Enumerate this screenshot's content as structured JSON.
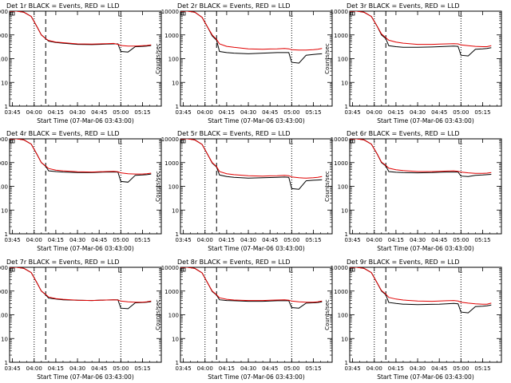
{
  "colors": {
    "events": "#000000",
    "lld": "#e00000",
    "axes": "#000000",
    "background": "#ffffff"
  },
  "shared": {
    "ylabel": "Counts/sec",
    "xlabel": "Start Time (07-Mar-06 03:43:00)",
    "y_scale": "log",
    "ylim": [
      1,
      10000
    ],
    "y_ticks": [
      "1",
      "10",
      "100",
      "1000",
      "10000"
    ],
    "x_ticks": [
      "03:45",
      "04:00",
      "04:15",
      "04:30",
      "04:45",
      "05:00",
      "05:15"
    ],
    "x_range_minutes": [
      223,
      328
    ],
    "dotted_line_times": [
      "04:00",
      "05:00"
    ],
    "dashed_line_time": "04:08",
    "grid": false,
    "legend": "none"
  },
  "chart_data": [
    {
      "type": "line",
      "title": "Det 1r BLACK = Events, RED = LLD",
      "x": [
        "03:43",
        "03:48",
        "03:53",
        "03:58",
        "04:02",
        "04:05",
        "04:08",
        "04:10",
        "04:15",
        "04:20",
        "04:30",
        "04:40",
        "04:45",
        "04:50",
        "04:55",
        "04:58",
        "05:00",
        "05:05",
        "05:10",
        "05:15",
        "05:18",
        "05:21"
      ],
      "series": [
        {
          "name": "Events",
          "values": [
            10000,
            10000,
            9000,
            6000,
            2200,
            1000,
            700,
            550,
            480,
            450,
            400,
            390,
            400,
            410,
            420,
            420,
            200,
            190,
            320,
            330,
            340,
            360
          ]
        },
        {
          "name": "LLD",
          "values": [
            10000,
            10000,
            9000,
            6000,
            2200,
            1000,
            700,
            580,
            500,
            470,
            420,
            410,
            420,
            430,
            440,
            400,
            360,
            340,
            340,
            350,
            360,
            380
          ]
        }
      ]
    },
    {
      "type": "line",
      "title": "Det 2r BLACK = Events, RED = LLD",
      "x": [
        "03:43",
        "03:48",
        "03:53",
        "03:58",
        "04:02",
        "04:05",
        "04:08",
        "04:10",
        "04:15",
        "04:20",
        "04:30",
        "04:40",
        "04:45",
        "04:50",
        "04:55",
        "04:58",
        "05:00",
        "05:05",
        "05:10",
        "05:15",
        "05:18",
        "05:21"
      ],
      "series": [
        {
          "name": "Events",
          "values": [
            10000,
            10000,
            9000,
            5500,
            2000,
            900,
            600,
            200,
            180,
            170,
            160,
            170,
            175,
            180,
            180,
            180,
            70,
            65,
            140,
            150,
            155,
            160
          ]
        },
        {
          "name": "LLD",
          "values": [
            10000,
            10000,
            9000,
            5500,
            2000,
            1000,
            650,
            420,
            330,
            300,
            260,
            250,
            255,
            260,
            270,
            260,
            240,
            230,
            230,
            240,
            250,
            270
          ]
        }
      ]
    },
    {
      "type": "line",
      "title": "Det 3r BLACK = Events, RED = LLD",
      "x": [
        "03:43",
        "03:48",
        "03:53",
        "03:58",
        "04:02",
        "04:05",
        "04:08",
        "04:10",
        "04:15",
        "04:20",
        "04:30",
        "04:40",
        "04:45",
        "04:50",
        "04:55",
        "04:58",
        "05:00",
        "05:05",
        "05:10",
        "05:15",
        "05:18",
        "05:21"
      ],
      "series": [
        {
          "name": "Events",
          "values": [
            10000,
            10000,
            9000,
            6000,
            2300,
            1000,
            700,
            350,
            320,
            300,
            300,
            310,
            320,
            330,
            340,
            330,
            140,
            130,
            250,
            260,
            270,
            290
          ]
        },
        {
          "name": "LLD",
          "values": [
            10000,
            10000,
            9000,
            6000,
            2300,
            1100,
            760,
            600,
            500,
            450,
            400,
            400,
            410,
            420,
            430,
            420,
            380,
            350,
            330,
            320,
            320,
            350
          ]
        }
      ]
    },
    {
      "type": "line",
      "title": "Det 4r BLACK = Events, RED = LLD",
      "x": [
        "03:43",
        "03:48",
        "03:53",
        "03:58",
        "04:02",
        "04:05",
        "04:08",
        "04:10",
        "04:15",
        "04:20",
        "04:30",
        "04:40",
        "04:45",
        "04:50",
        "04:55",
        "04:58",
        "05:00",
        "05:05",
        "05:10",
        "05:15",
        "05:18",
        "05:21"
      ],
      "series": [
        {
          "name": "Events",
          "values": [
            10000,
            10000,
            9000,
            6000,
            2200,
            1000,
            700,
            450,
            420,
            400,
            380,
            380,
            390,
            400,
            400,
            400,
            160,
            150,
            290,
            300,
            310,
            330
          ]
        },
        {
          "name": "LLD",
          "values": [
            10000,
            10000,
            9000,
            6000,
            2200,
            1000,
            720,
            560,
            480,
            450,
            410,
            400,
            410,
            420,
            430,
            410,
            370,
            340,
            330,
            330,
            340,
            360
          ]
        }
      ]
    },
    {
      "type": "line",
      "title": "Det 5r BLACK = Events, RED = LLD",
      "x": [
        "03:43",
        "03:48",
        "03:53",
        "03:58",
        "04:02",
        "04:05",
        "04:08",
        "04:10",
        "04:15",
        "04:20",
        "04:30",
        "04:40",
        "04:45",
        "04:50",
        "04:55",
        "04:58",
        "05:00",
        "05:05",
        "05:10",
        "05:15",
        "05:18",
        "05:21"
      ],
      "series": [
        {
          "name": "Events",
          "values": [
            10000,
            10000,
            9000,
            5800,
            2100,
            950,
            650,
            300,
            260,
            240,
            220,
            230,
            235,
            240,
            245,
            240,
            80,
            75,
            170,
            180,
            185,
            190
          ]
        },
        {
          "name": "LLD",
          "values": [
            10000,
            10000,
            9000,
            5800,
            2100,
            1000,
            680,
            420,
            340,
            310,
            280,
            270,
            275,
            280,
            290,
            280,
            250,
            230,
            220,
            230,
            240,
            260
          ]
        }
      ]
    },
    {
      "type": "line",
      "title": "Det 6r BLACK = Events, RED = LLD",
      "x": [
        "03:43",
        "03:48",
        "03:53",
        "03:58",
        "04:02",
        "04:05",
        "04:08",
        "04:10",
        "04:15",
        "04:20",
        "04:30",
        "04:40",
        "04:45",
        "04:50",
        "04:55",
        "04:58",
        "05:00",
        "05:05",
        "05:10",
        "05:15",
        "05:18",
        "05:21"
      ],
      "series": [
        {
          "name": "Events",
          "values": [
            10000,
            10000,
            9000,
            6000,
            2300,
            1000,
            720,
            420,
            390,
            380,
            370,
            380,
            390,
            400,
            400,
            400,
            270,
            260,
            290,
            300,
            310,
            320
          ]
        },
        {
          "name": "LLD",
          "values": [
            10000,
            10000,
            9000,
            6000,
            2300,
            1050,
            760,
            580,
            500,
            460,
            420,
            420,
            430,
            440,
            450,
            430,
            400,
            370,
            350,
            350,
            360,
            380
          ]
        }
      ]
    },
    {
      "type": "line",
      "title": "Det 7r BLACK = Events, RED = LLD",
      "x": [
        "03:43",
        "03:48",
        "03:53",
        "03:58",
        "04:02",
        "04:05",
        "04:08",
        "04:10",
        "04:15",
        "04:20",
        "04:30",
        "04:40",
        "04:45",
        "04:50",
        "04:55",
        "04:58",
        "05:00",
        "05:05",
        "05:10",
        "05:15",
        "05:18",
        "05:21"
      ],
      "series": [
        {
          "name": "Events",
          "values": [
            10000,
            10000,
            9000,
            6000,
            2200,
            1000,
            700,
            500,
            460,
            430,
            410,
            400,
            410,
            420,
            430,
            430,
            190,
            180,
            320,
            330,
            340,
            360
          ]
        },
        {
          "name": "LLD",
          "values": [
            10000,
            10000,
            9000,
            6000,
            2200,
            1000,
            720,
            560,
            480,
            450,
            410,
            400,
            410,
            420,
            430,
            420,
            380,
            350,
            340,
            340,
            350,
            380
          ]
        }
      ]
    },
    {
      "type": "line",
      "title": "Det 8r BLACK = Events, RED = LLD",
      "x": [
        "03:43",
        "03:48",
        "03:53",
        "03:58",
        "04:02",
        "04:05",
        "04:08",
        "04:10",
        "04:15",
        "04:20",
        "04:30",
        "04:40",
        "04:45",
        "04:50",
        "04:55",
        "04:58",
        "05:00",
        "05:05",
        "05:10",
        "05:15",
        "05:18",
        "05:21"
      ],
      "series": [
        {
          "name": "Events",
          "values": [
            10000,
            10000,
            9000,
            5800,
            2100,
            950,
            680,
            430,
            400,
            390,
            370,
            370,
            380,
            390,
            390,
            390,
            200,
            190,
            310,
            320,
            330,
            350
          ]
        },
        {
          "name": "LLD",
          "values": [
            10000,
            10000,
            9000,
            5800,
            2100,
            1000,
            700,
            520,
            450,
            420,
            400,
            400,
            410,
            420,
            430,
            410,
            380,
            350,
            340,
            340,
            350,
            380
          ]
        }
      ]
    },
    {
      "type": "line",
      "title": "Det 9r BLACK = Events, RED = LLD",
      "x": [
        "03:43",
        "03:48",
        "03:53",
        "03:58",
        "04:02",
        "04:05",
        "04:08",
        "04:10",
        "04:15",
        "04:20",
        "04:30",
        "04:40",
        "04:45",
        "04:50",
        "04:55",
        "04:58",
        "05:00",
        "05:05",
        "05:10",
        "05:15",
        "05:18",
        "05:21"
      ],
      "series": [
        {
          "name": "Events",
          "values": [
            10000,
            10000,
            9000,
            6000,
            2200,
            1000,
            700,
            330,
            300,
            280,
            270,
            275,
            280,
            290,
            300,
            290,
            130,
            120,
            220,
            230,
            240,
            260
          ]
        },
        {
          "name": "LLD",
          "values": [
            10000,
            10000,
            9000,
            6000,
            2200,
            1050,
            740,
            540,
            460,
            420,
            380,
            370,
            380,
            390,
            400,
            380,
            340,
            310,
            290,
            280,
            280,
            310
          ]
        }
      ]
    }
  ]
}
